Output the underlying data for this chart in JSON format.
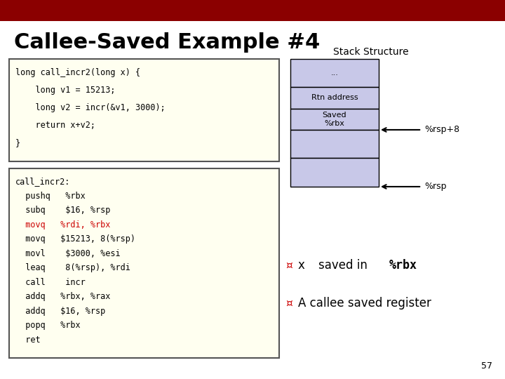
{
  "title": "Callee-Saved Example #4",
  "title_color": "#000000",
  "title_fontsize": 22,
  "top_bar_color": "#8B0000",
  "background_color": "#FFFFFF",
  "code_box1_bg": "#FFFFF0",
  "code_box1_border": "#555555",
  "code_box2_bg": "#FFFFF0",
  "code_box2_border": "#555555",
  "code1_lines": [
    "long call_incr2(long x) {",
    "    long v1 = 15213;",
    "    long v2 = incr(&v1, 3000);",
    "    return x+v2;",
    "}"
  ],
  "code2_lines": [
    [
      "call_incr2:",
      ""
    ],
    [
      "  pushq",
      "   %rbx"
    ],
    [
      "  subq",
      "    $16, %rsp"
    ],
    [
      "  movq",
      "   %rdi, %rbx"
    ],
    [
      "  movq",
      "   $15213, 8(%rsp)"
    ],
    [
      "  movl",
      "    $3000, %esi"
    ],
    [
      "  leaq",
      "    8(%rsp), %rdi"
    ],
    [
      "  call",
      "    incr"
    ],
    [
      "  addq",
      "   %rbx, %rax"
    ],
    [
      "  addq",
      "   $16, %rsp"
    ],
    [
      "  popq",
      "   %rbx"
    ],
    [
      "  ret",
      ""
    ]
  ],
  "code2_red_line_index": 3,
  "stack_label": "Stack Structure",
  "stack_fill_color": "#C8C8E8",
  "stack_border_color": "#000000",
  "rsp8_label": "%rsp+8",
  "rsp_label": "%rsp",
  "slide_number": "57",
  "monospace_font": "monospace",
  "normal_font": "DejaVu Sans",
  "bullet_red_color": "#CC0000",
  "code_red_color": "#CC0000"
}
